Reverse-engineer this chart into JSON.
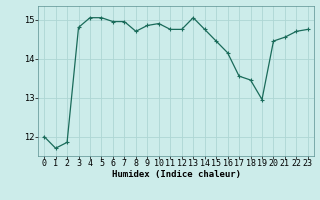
{
  "x": [
    0,
    1,
    2,
    3,
    4,
    5,
    6,
    7,
    8,
    9,
    10,
    11,
    12,
    13,
    14,
    15,
    16,
    17,
    18,
    19,
    20,
    21,
    22,
    23
  ],
  "y": [
    12.0,
    11.7,
    11.85,
    14.8,
    15.05,
    15.05,
    14.95,
    14.95,
    14.7,
    14.85,
    14.9,
    14.75,
    14.75,
    15.05,
    14.75,
    14.45,
    14.15,
    13.55,
    13.45,
    12.95,
    14.45,
    14.55,
    14.7,
    14.75
  ],
  "line_color": "#1a6b5a",
  "marker": "+",
  "marker_size": 3,
  "marker_lw": 0.8,
  "line_width": 0.9,
  "bg_color": "#ccecea",
  "grid_color": "#aed6d4",
  "xlabel": "Humidex (Indice chaleur)",
  "ylim": [
    11.5,
    15.35
  ],
  "xlim": [
    -0.5,
    23.5
  ],
  "yticks": [
    12,
    13,
    14,
    15
  ],
  "xtick_labels": [
    "0",
    "1",
    "2",
    "3",
    "4",
    "5",
    "6",
    "7",
    "8",
    "9",
    "10",
    "11",
    "12",
    "13",
    "14",
    "15",
    "16",
    "17",
    "18",
    "19",
    "20",
    "21",
    "22",
    "23"
  ],
  "xlabel_fontsize": 6.5,
  "tick_fontsize": 6.0,
  "spine_color": "#5a9090"
}
